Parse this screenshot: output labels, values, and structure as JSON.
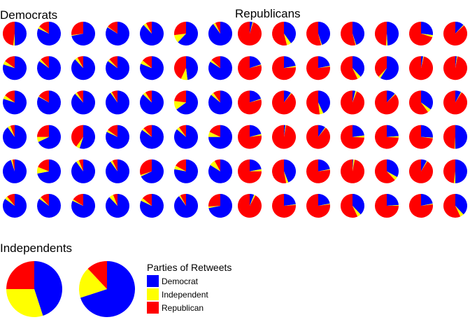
{
  "colors": {
    "Democrat": "#0000FF",
    "Independent": "#FFFF00",
    "Republican": "#FF0000"
  },
  "legend": {
    "title": "Parties of Retweets",
    "items": [
      {
        "label": "Democrat",
        "key": "Democrat"
      },
      {
        "label": "Independent",
        "key": "Independent"
      },
      {
        "label": "Republican",
        "key": "Republican"
      }
    ]
  },
  "chart_data": [
    {
      "type": "pie",
      "title": "Democrats",
      "categories": [
        "Democrat",
        "Independent",
        "Republican"
      ],
      "pies": [
        [
          0.5,
          0.02,
          0.48
        ],
        [
          0.82,
          0.03,
          0.15
        ],
        [
          0.72,
          0.01,
          0.27
        ],
        [
          0.84,
          0.01,
          0.15
        ],
        [
          0.88,
          0.04,
          0.08
        ],
        [
          0.62,
          0.11,
          0.27
        ],
        [
          0.9,
          0.03,
          0.07
        ],
        [
          0.8,
          0.05,
          0.15
        ],
        [
          0.85,
          0.03,
          0.12
        ],
        [
          0.88,
          0.04,
          0.08
        ],
        [
          0.85,
          0.03,
          0.12
        ],
        [
          0.81,
          0.05,
          0.14
        ],
        [
          0.48,
          0.09,
          0.43
        ],
        [
          0.84,
          0.03,
          0.13
        ],
        [
          0.8,
          0.05,
          0.15
        ],
        [
          0.83,
          0.01,
          0.16
        ],
        [
          0.88,
          0.03,
          0.09
        ],
        [
          0.9,
          0.02,
          0.08
        ],
        [
          0.87,
          0.04,
          0.09
        ],
        [
          0.65,
          0.12,
          0.23
        ],
        [
          0.86,
          0.04,
          0.1
        ],
        [
          0.9,
          0.04,
          0.06
        ],
        [
          0.68,
          0.07,
          0.25
        ],
        [
          0.55,
          0.05,
          0.4
        ],
        [
          0.82,
          0.03,
          0.15
        ],
        [
          0.85,
          0.03,
          0.12
        ],
        [
          0.86,
          0.04,
          0.1
        ],
        [
          0.75,
          0.07,
          0.18
        ],
        [
          0.95,
          0.02,
          0.03
        ],
        [
          0.72,
          0.09,
          0.19
        ],
        [
          0.9,
          0.04,
          0.06
        ],
        [
          0.9,
          0.03,
          0.07
        ],
        [
          0.68,
          0.02,
          0.3
        ],
        [
          0.78,
          0.05,
          0.17
        ],
        [
          0.84,
          0.08,
          0.08
        ],
        [
          0.85,
          0.04,
          0.11
        ],
        [
          0.85,
          0.03,
          0.12
        ],
        [
          0.82,
          0.02,
          0.16
        ],
        [
          0.88,
          0.06,
          0.06
        ],
        [
          0.82,
          0.04,
          0.14
        ],
        [
          0.9,
          0.02,
          0.08
        ],
        [
          0.72,
          0.02,
          0.26
        ]
      ]
    },
    {
      "type": "pie",
      "title": "Republicans",
      "categories": [
        "Democrat",
        "Independent",
        "Republican"
      ],
      "pies": [
        [
          0.04,
          0.01,
          0.95
        ],
        [
          0.4,
          0.06,
          0.54
        ],
        [
          0.45,
          0.01,
          0.54
        ],
        [
          0.45,
          0.01,
          0.54
        ],
        [
          0.49,
          0.02,
          0.49
        ],
        [
          0.27,
          0.03,
          0.7
        ],
        [
          0.12,
          0.01,
          0.87
        ],
        [
          0.2,
          0.01,
          0.79
        ],
        [
          0.22,
          0.02,
          0.76
        ],
        [
          0.22,
          0.01,
          0.77
        ],
        [
          0.38,
          0.05,
          0.57
        ],
        [
          0.59,
          0.03,
          0.38
        ],
        [
          0.03,
          0.01,
          0.96
        ],
        [
          0.02,
          0.01,
          0.97
        ],
        [
          0.2,
          0.01,
          0.79
        ],
        [
          0.1,
          0.01,
          0.89
        ],
        [
          0.43,
          0.05,
          0.52
        ],
        [
          0.04,
          0.02,
          0.94
        ],
        [
          0.12,
          0.01,
          0.87
        ],
        [
          0.35,
          0.05,
          0.6
        ],
        [
          0.08,
          0.01,
          0.91
        ],
        [
          0.21,
          0.02,
          0.77
        ],
        [
          0.02,
          0.01,
          0.97
        ],
        [
          0.1,
          0.01,
          0.89
        ],
        [
          0.23,
          0.03,
          0.74
        ],
        [
          0.24,
          0.02,
          0.74
        ],
        [
          0.26,
          0.01,
          0.73
        ],
        [
          0.5,
          0.01,
          0.49
        ],
        [
          0.22,
          0.03,
          0.75
        ],
        [
          0.44,
          0.03,
          0.53
        ],
        [
          0.22,
          0.01,
          0.77
        ],
        [
          0.01,
          0.02,
          0.97
        ],
        [
          0.33,
          0.05,
          0.62
        ],
        [
          0.08,
          0.01,
          0.91
        ],
        [
          0.5,
          0.02,
          0.48
        ],
        [
          0.06,
          0.02,
          0.92
        ],
        [
          0.23,
          0.01,
          0.76
        ],
        [
          0.22,
          0.01,
          0.77
        ],
        [
          0.38,
          0.05,
          0.57
        ],
        [
          0.24,
          0.01,
          0.75
        ],
        [
          0.22,
          0.01,
          0.77
        ],
        [
          0.38,
          0.05,
          0.57
        ]
      ]
    },
    {
      "type": "pie",
      "title": "Independents",
      "categories": [
        "Democrat",
        "Independent",
        "Republican"
      ],
      "pies": [
        [
          0.45,
          0.3,
          0.25
        ],
        [
          0.7,
          0.18,
          0.12
        ]
      ]
    }
  ]
}
